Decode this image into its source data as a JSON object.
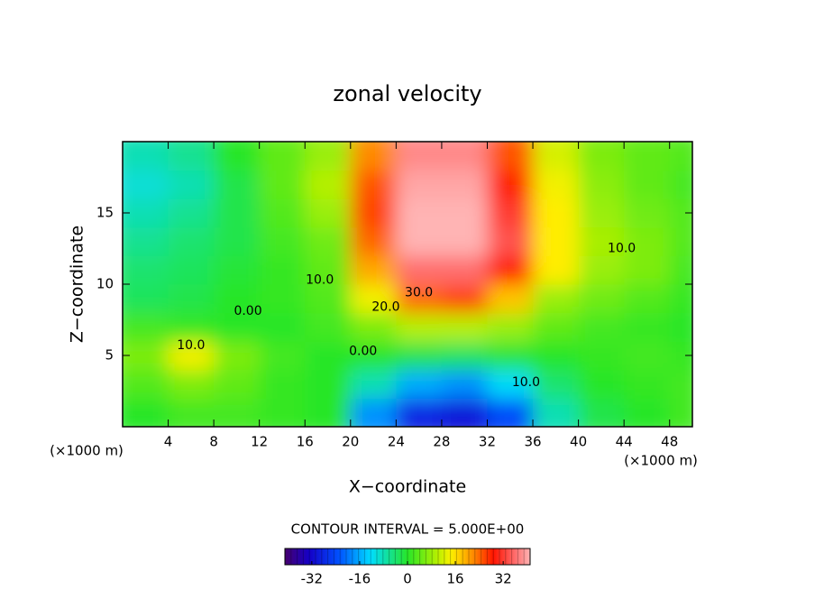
{
  "chart_data": {
    "type": "contour",
    "title": "zonal velocity",
    "xlabel": "X−coordinate",
    "ylabel": "Z−coordinate",
    "xunit": "(×1000 m)",
    "yunit": "(×1000 m)",
    "footer": "CONTOUR INTERVAL = 5.000E+00",
    "xbins": [
      0,
      4,
      8,
      12,
      16,
      20,
      24,
      28,
      32,
      36,
      40,
      44,
      48,
      50
    ],
    "zbins": [
      0,
      2,
      4,
      6,
      8,
      10,
      12,
      14,
      16,
      18,
      20
    ],
    "values": [
      [
        0,
        2,
        2,
        1,
        0,
        -18,
        -28,
        -30,
        -24,
        -8,
        -2,
        0,
        2
      ],
      [
        3,
        6,
        4,
        1,
        0,
        -8,
        -16,
        -18,
        -12,
        -4,
        0,
        1,
        2
      ],
      [
        6,
        14,
        6,
        2,
        0,
        0,
        -2,
        -3,
        -1,
        0,
        1,
        2,
        1
      ],
      [
        2,
        1,
        0,
        0,
        2,
        6,
        10,
        10,
        8,
        4,
        2,
        1,
        0
      ],
      [
        -3,
        -2,
        0,
        1,
        3,
        14,
        24,
        26,
        18,
        8,
        5,
        3,
        1
      ],
      [
        -4,
        -3,
        -1,
        1,
        4,
        20,
        36,
        36,
        28,
        15,
        8,
        6,
        2
      ],
      [
        -6,
        -4,
        -2,
        2,
        5,
        24,
        42,
        42,
        34,
        15,
        9,
        6,
        3
      ],
      [
        -8,
        -6,
        -2,
        3,
        8,
        26,
        42,
        42,
        32,
        15,
        8,
        5,
        3
      ],
      [
        -10,
        -8,
        -2,
        4,
        10,
        25,
        40,
        40,
        28,
        14,
        7,
        4,
        2
      ],
      [
        -8,
        -6,
        0,
        4,
        8,
        22,
        38,
        38,
        25,
        12,
        6,
        4,
        3
      ]
    ],
    "xlim": [
      0,
      50
    ],
    "ylim": [
      0,
      20
    ],
    "xticks": [
      4,
      8,
      12,
      16,
      20,
      24,
      28,
      32,
      36,
      40,
      44,
      48
    ],
    "yticks": [
      5,
      10,
      15
    ],
    "clim": [
      -41,
      41
    ],
    "cticks": [
      -32,
      -16,
      0,
      16,
      32
    ],
    "annotations": [
      {
        "text": "10.0",
        "x": 6,
        "y": 5.7
      },
      {
        "text": "0.00",
        "x": 11,
        "y": 8.1
      },
      {
        "text": "10.0",
        "x": 17.3,
        "y": 10.3
      },
      {
        "text": "30.0",
        "x": 26,
        "y": 9.4
      },
      {
        "text": "20.0",
        "x": 23.1,
        "y": 8.4
      },
      {
        "text": "0.00",
        "x": 21.1,
        "y": 5.3
      },
      {
        "text": "10.0",
        "x": 35.4,
        "y": 3.1
      },
      {
        "text": "10.0",
        "x": 43.8,
        "y": 12.5
      }
    ]
  }
}
